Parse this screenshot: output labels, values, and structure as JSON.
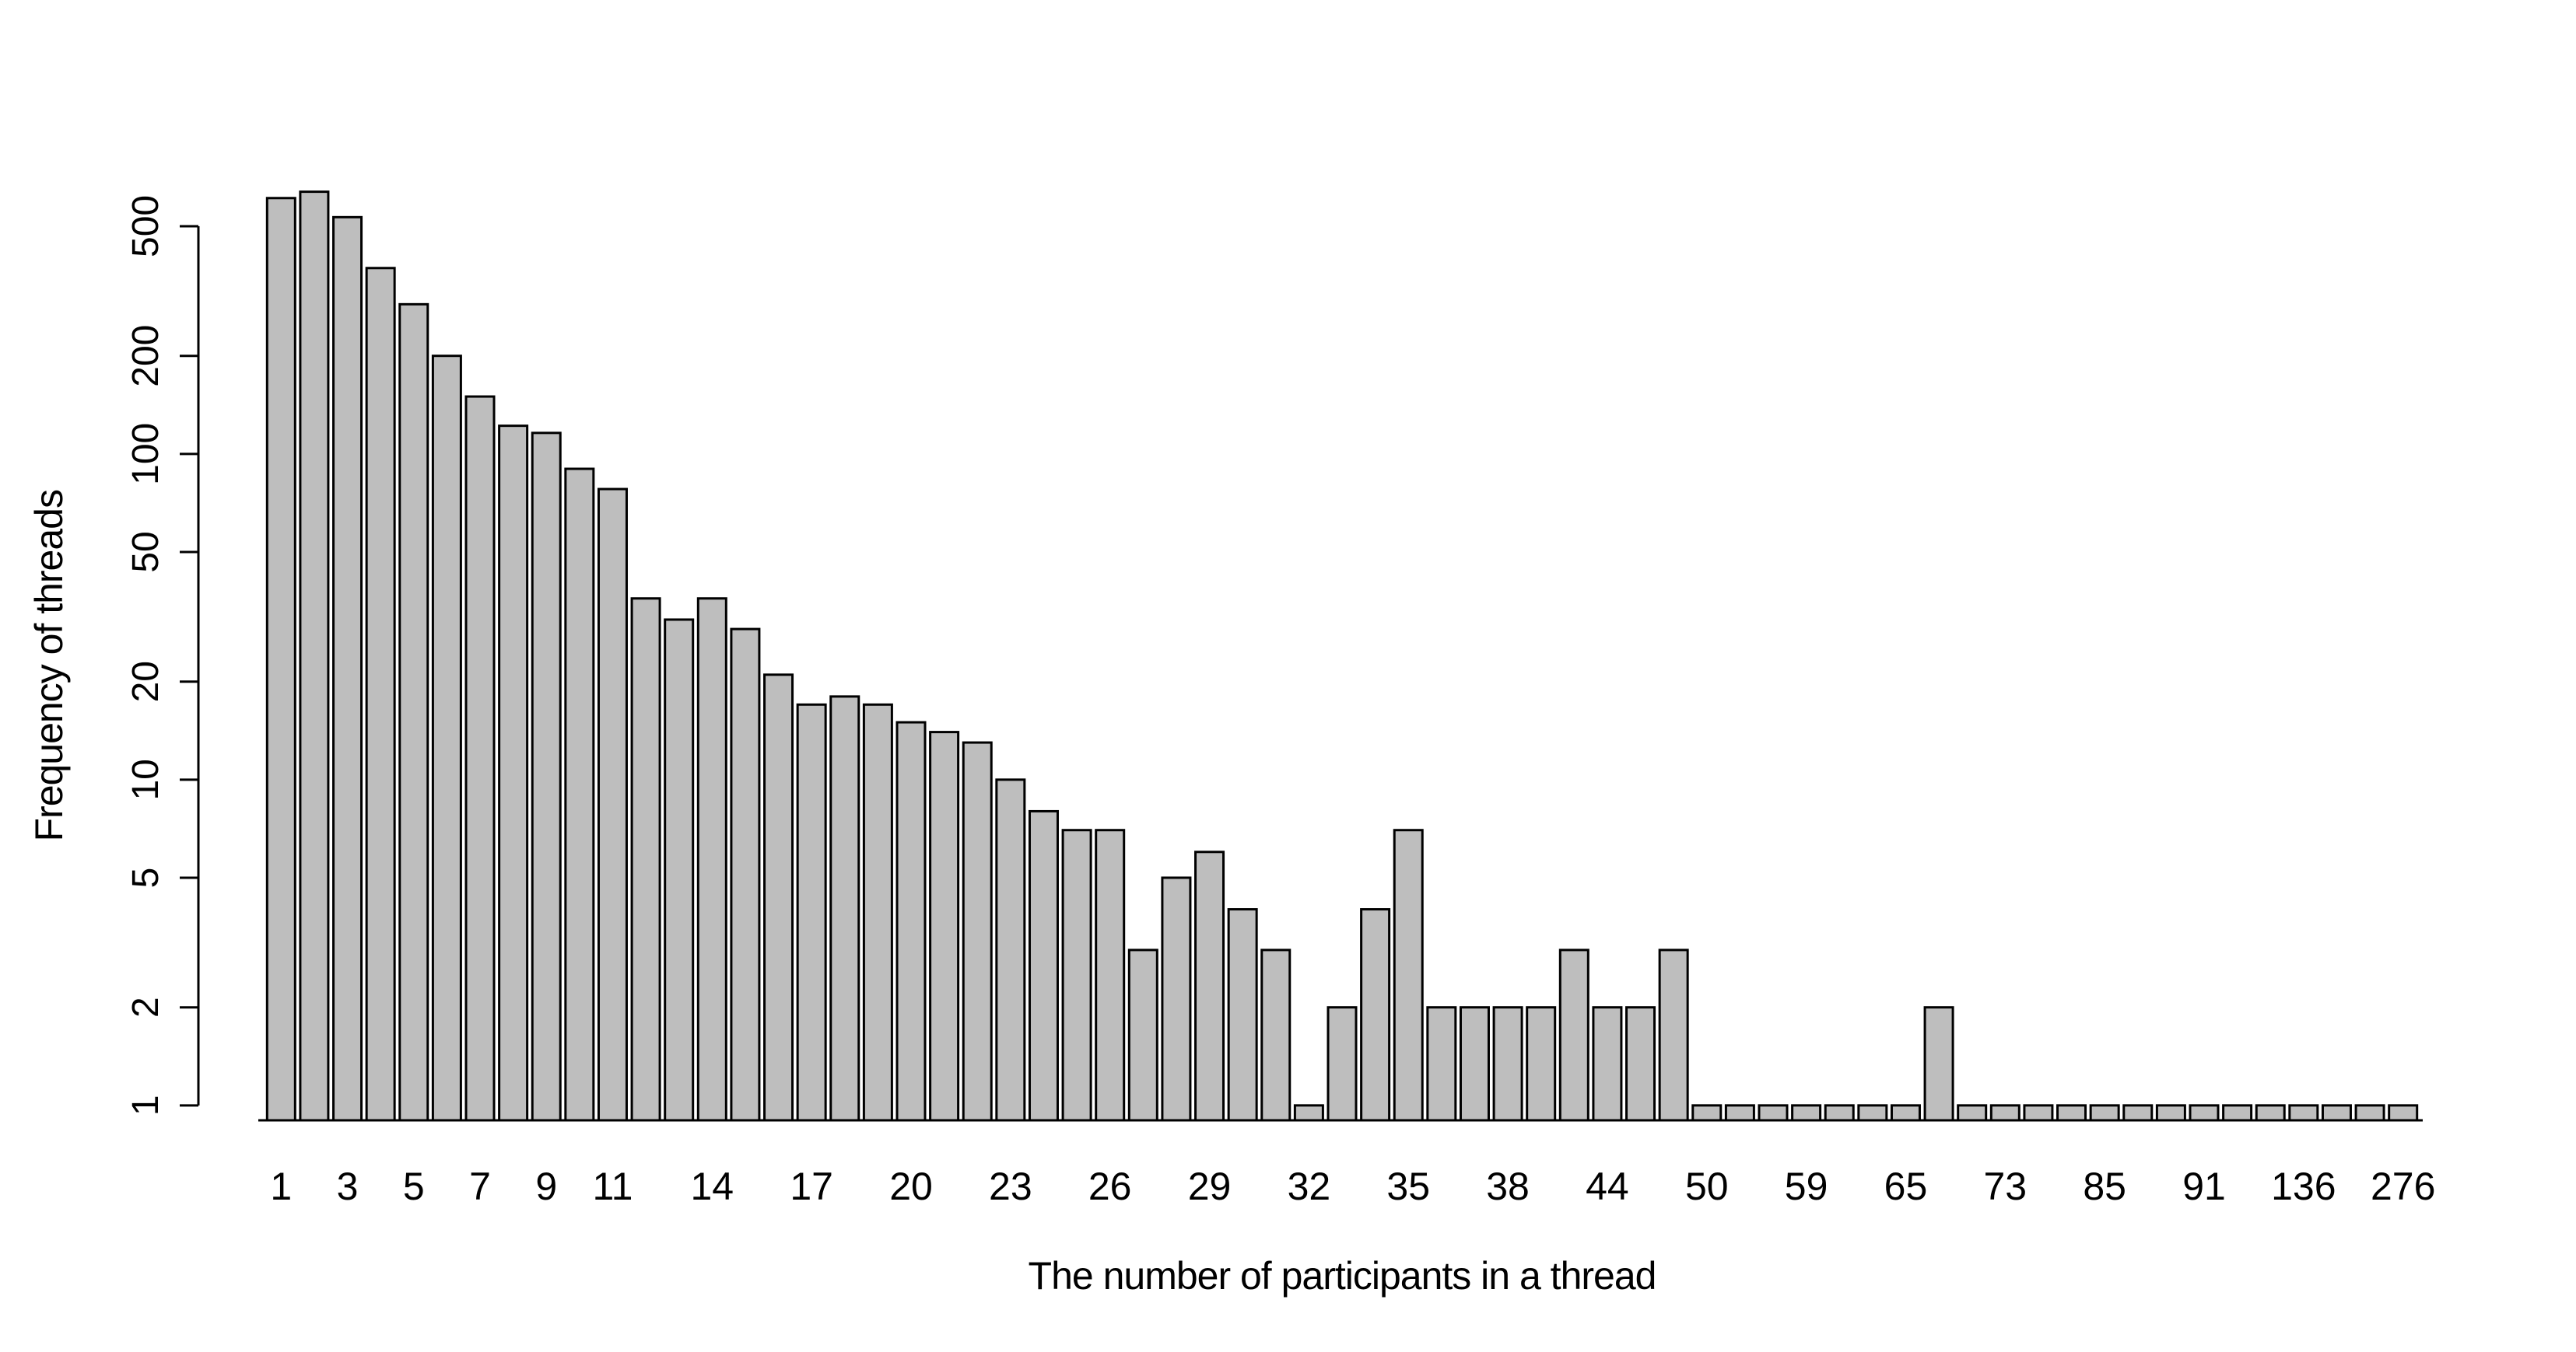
{
  "chart_data": {
    "type": "bar",
    "title": "",
    "xlabel": "The number of participants in a thread",
    "ylabel": "Frequency of threads",
    "y_scale": "log",
    "ylim": [
      0.9,
      700
    ],
    "y_ticks": [
      1,
      2,
      5,
      10,
      20,
      50,
      100,
      200,
      500
    ],
    "grid": false,
    "legend": false,
    "bar_fill": "#bebebe",
    "bar_stroke": "#000000",
    "values": [
      610,
      638,
      533,
      372,
      288,
      200,
      150,
      122,
      116,
      90,
      78,
      36,
      31,
      36,
      29,
      21,
      17,
      18,
      17,
      15,
      14,
      13,
      10,
      8,
      7,
      7,
      3,
      5,
      6,
      4,
      3,
      1,
      2,
      4,
      7,
      2,
      2,
      2,
      2,
      3,
      2,
      2,
      3,
      1,
      1,
      1,
      1,
      1,
      1,
      1,
      2,
      1,
      1,
      1,
      1,
      1,
      1,
      1,
      1,
      1,
      1,
      1,
      1,
      1,
      1
    ],
    "x_tick_positions": [
      1,
      3,
      5,
      7,
      9,
      11,
      14,
      17,
      20,
      23,
      26,
      29,
      32,
      35,
      38,
      41,
      44,
      47,
      50,
      53,
      56,
      59,
      62,
      65
    ],
    "x_tick_labels": [
      "1",
      "3",
      "5",
      "7",
      "9",
      "11",
      "14",
      "17",
      "20",
      "23",
      "26",
      "29",
      "32",
      "35",
      "38",
      "44",
      "50",
      "59",
      "65",
      "73",
      "85",
      "91",
      "136",
      "276"
    ]
  }
}
